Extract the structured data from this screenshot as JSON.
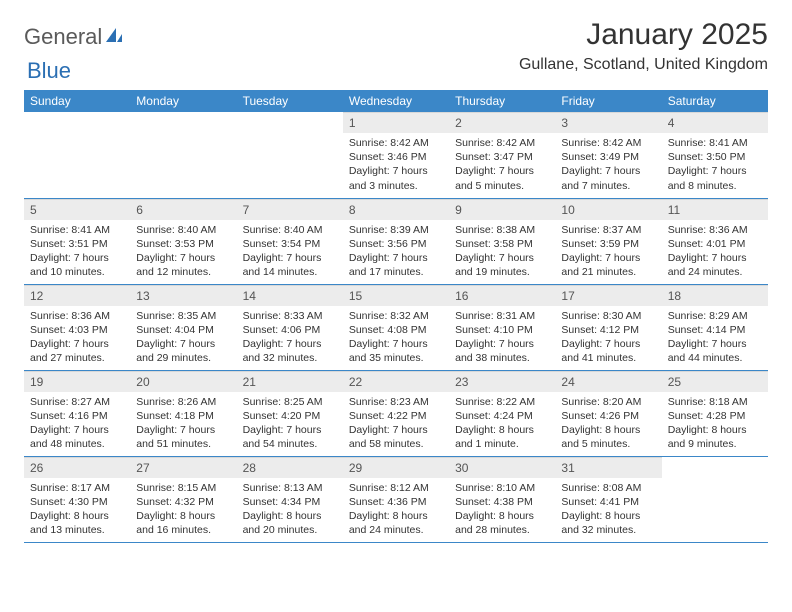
{
  "logo": {
    "text1": "General",
    "text2": "Blue"
  },
  "title": "January 2025",
  "location": "Gullane, Scotland, United Kingdom",
  "weekdays": [
    "Sunday",
    "Monday",
    "Tuesday",
    "Wednesday",
    "Thursday",
    "Friday",
    "Saturday"
  ],
  "colors": {
    "header_bg": "#3b87c8",
    "header_text": "#ffffff",
    "daynum_bg": "#ececec",
    "border": "#3b87c8",
    "logo_gray": "#5a5a5a",
    "logo_blue": "#2b6fb3"
  },
  "font": {
    "body_size": 10.5,
    "header_size": 12,
    "title_size": 30,
    "location_size": 16
  },
  "layout": {
    "cols": 7,
    "rows": 5,
    "first_weekday_index": 3
  },
  "days": {
    "1": {
      "sunrise": "8:42 AM",
      "sunset": "3:46 PM",
      "daylight": "7 hours and 3 minutes."
    },
    "2": {
      "sunrise": "8:42 AM",
      "sunset": "3:47 PM",
      "daylight": "7 hours and 5 minutes."
    },
    "3": {
      "sunrise": "8:42 AM",
      "sunset": "3:49 PM",
      "daylight": "7 hours and 7 minutes."
    },
    "4": {
      "sunrise": "8:41 AM",
      "sunset": "3:50 PM",
      "daylight": "7 hours and 8 minutes."
    },
    "5": {
      "sunrise": "8:41 AM",
      "sunset": "3:51 PM",
      "daylight": "7 hours and 10 minutes."
    },
    "6": {
      "sunrise": "8:40 AM",
      "sunset": "3:53 PM",
      "daylight": "7 hours and 12 minutes."
    },
    "7": {
      "sunrise": "8:40 AM",
      "sunset": "3:54 PM",
      "daylight": "7 hours and 14 minutes."
    },
    "8": {
      "sunrise": "8:39 AM",
      "sunset": "3:56 PM",
      "daylight": "7 hours and 17 minutes."
    },
    "9": {
      "sunrise": "8:38 AM",
      "sunset": "3:58 PM",
      "daylight": "7 hours and 19 minutes."
    },
    "10": {
      "sunrise": "8:37 AM",
      "sunset": "3:59 PM",
      "daylight": "7 hours and 21 minutes."
    },
    "11": {
      "sunrise": "8:36 AM",
      "sunset": "4:01 PM",
      "daylight": "7 hours and 24 minutes."
    },
    "12": {
      "sunrise": "8:36 AM",
      "sunset": "4:03 PM",
      "daylight": "7 hours and 27 minutes."
    },
    "13": {
      "sunrise": "8:35 AM",
      "sunset": "4:04 PM",
      "daylight": "7 hours and 29 minutes."
    },
    "14": {
      "sunrise": "8:33 AM",
      "sunset": "4:06 PM",
      "daylight": "7 hours and 32 minutes."
    },
    "15": {
      "sunrise": "8:32 AM",
      "sunset": "4:08 PM",
      "daylight": "7 hours and 35 minutes."
    },
    "16": {
      "sunrise": "8:31 AM",
      "sunset": "4:10 PM",
      "daylight": "7 hours and 38 minutes."
    },
    "17": {
      "sunrise": "8:30 AM",
      "sunset": "4:12 PM",
      "daylight": "7 hours and 41 minutes."
    },
    "18": {
      "sunrise": "8:29 AM",
      "sunset": "4:14 PM",
      "daylight": "7 hours and 44 minutes."
    },
    "19": {
      "sunrise": "8:27 AM",
      "sunset": "4:16 PM",
      "daylight": "7 hours and 48 minutes."
    },
    "20": {
      "sunrise": "8:26 AM",
      "sunset": "4:18 PM",
      "daylight": "7 hours and 51 minutes."
    },
    "21": {
      "sunrise": "8:25 AM",
      "sunset": "4:20 PM",
      "daylight": "7 hours and 54 minutes."
    },
    "22": {
      "sunrise": "8:23 AM",
      "sunset": "4:22 PM",
      "daylight": "7 hours and 58 minutes."
    },
    "23": {
      "sunrise": "8:22 AM",
      "sunset": "4:24 PM",
      "daylight": "8 hours and 1 minute."
    },
    "24": {
      "sunrise": "8:20 AM",
      "sunset": "4:26 PM",
      "daylight": "8 hours and 5 minutes."
    },
    "25": {
      "sunrise": "8:18 AM",
      "sunset": "4:28 PM",
      "daylight": "8 hours and 9 minutes."
    },
    "26": {
      "sunrise": "8:17 AM",
      "sunset": "4:30 PM",
      "daylight": "8 hours and 13 minutes."
    },
    "27": {
      "sunrise": "8:15 AM",
      "sunset": "4:32 PM",
      "daylight": "8 hours and 16 minutes."
    },
    "28": {
      "sunrise": "8:13 AM",
      "sunset": "4:34 PM",
      "daylight": "8 hours and 20 minutes."
    },
    "29": {
      "sunrise": "8:12 AM",
      "sunset": "4:36 PM",
      "daylight": "8 hours and 24 minutes."
    },
    "30": {
      "sunrise": "8:10 AM",
      "sunset": "4:38 PM",
      "daylight": "8 hours and 28 minutes."
    },
    "31": {
      "sunrise": "8:08 AM",
      "sunset": "4:41 PM",
      "daylight": "8 hours and 32 minutes."
    }
  },
  "labels": {
    "sunrise": "Sunrise:",
    "sunset": "Sunset:",
    "daylight": "Daylight:"
  }
}
